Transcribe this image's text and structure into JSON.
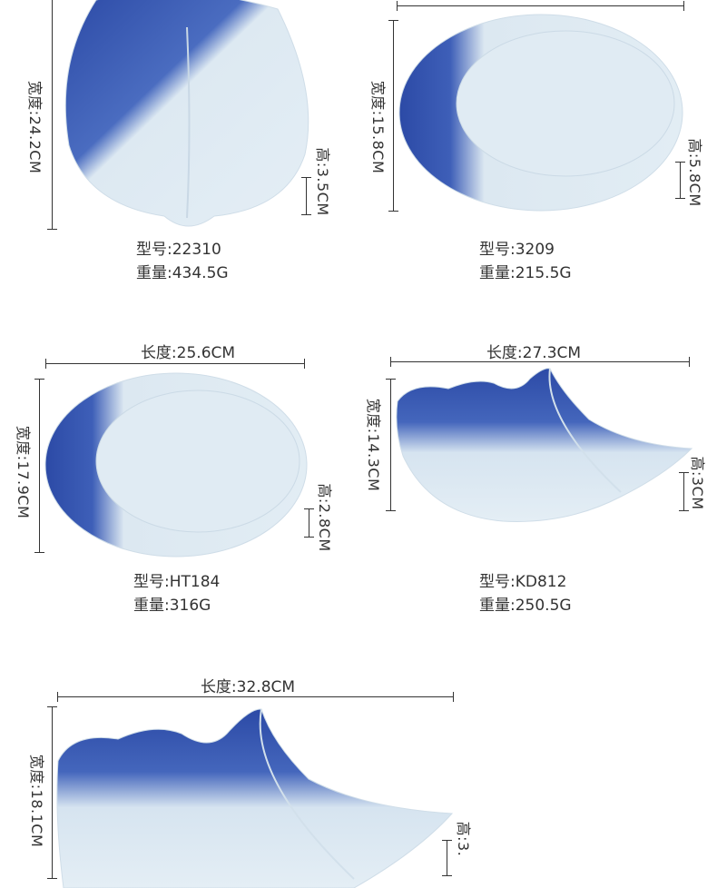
{
  "products": [
    {
      "model": "型号:22310",
      "weight": "重量:434.5G",
      "width": "宽度:24.2CM",
      "height": "高:3.5CM"
    },
    {
      "model": "型号:3209",
      "weight": "重量:215.5G",
      "width": "宽度:15.8CM",
      "height": "高:5.8CM"
    },
    {
      "model": "型号:HT184",
      "weight": "重量:316G",
      "length": "长度:25.6CM",
      "width": "宽度:17.9CM",
      "height": "高:2.8CM"
    },
    {
      "model": "型号:KD812",
      "weight": "重量:250.5G",
      "length": "长度:27.3CM",
      "width": "宽度:14.3CM",
      "height": "高:3CM"
    },
    {
      "length": "长度:32.8CM",
      "width": "宽度:18.1CM",
      "height": "高:3."
    }
  ],
  "colors": {
    "glaze_blue": "#2f4fa8",
    "plate_body": "#dfeaf2"
  }
}
